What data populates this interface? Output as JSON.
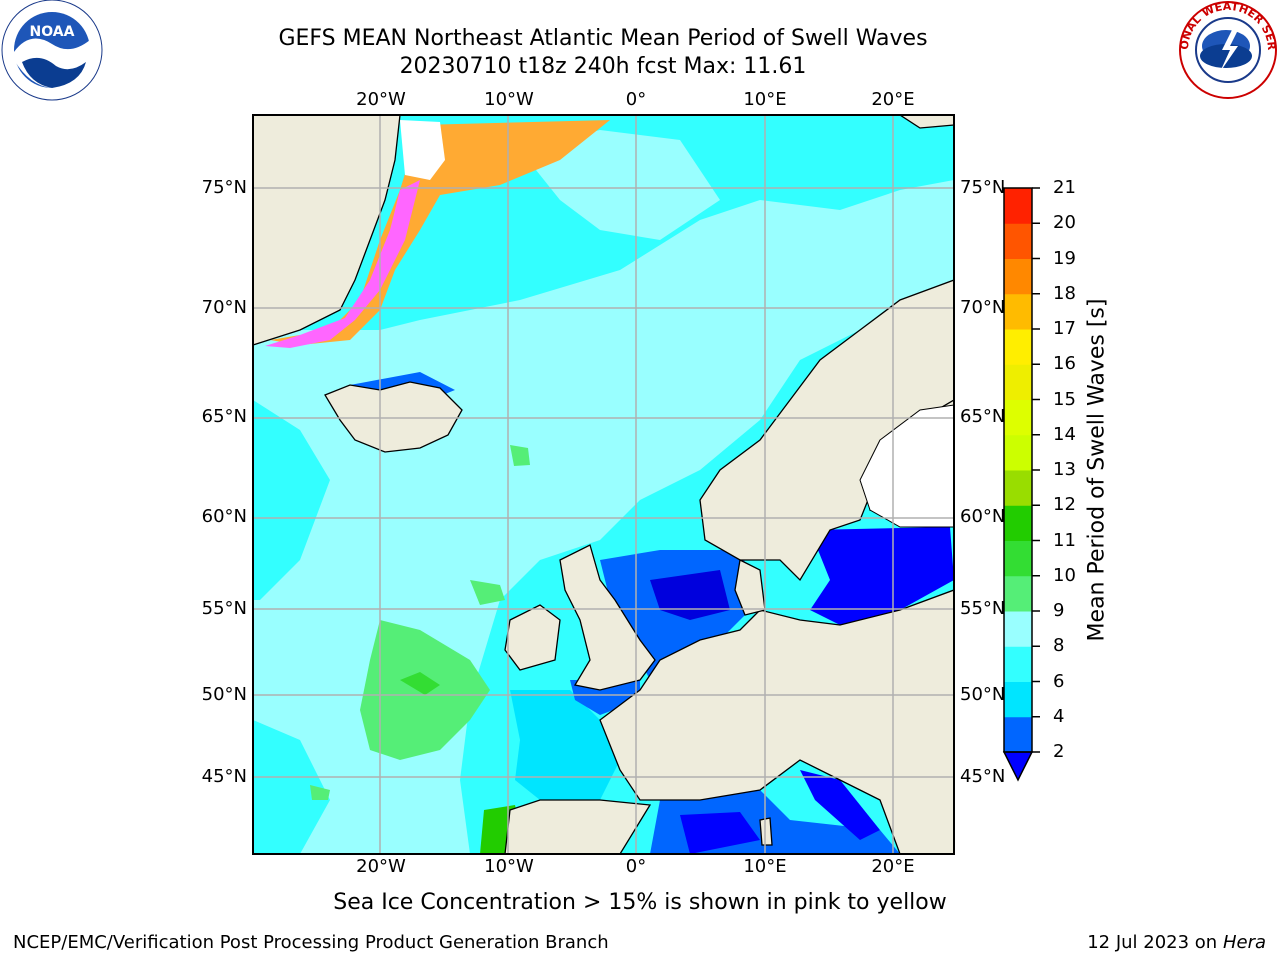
{
  "header": {
    "title_line1": "GEFS MEAN Northeast Atlantic Mean Period of Swell Waves",
    "title_line2": "20230710 t18z 240h fcst   Max: 11.61"
  },
  "logos": {
    "noaa": "NOAA",
    "nws": "NATIONAL WEATHER SERVICE"
  },
  "map": {
    "lon_labels": [
      "20°W",
      "10°W",
      "0°",
      "10°E",
      "20°E"
    ],
    "lat_labels": [
      "75°N",
      "70°N",
      "65°N",
      "60°N",
      "55°N",
      "50°N",
      "45°N"
    ],
    "land_color": "#eeecdc",
    "ocean_base_color": "#33ffff"
  },
  "colorbar": {
    "title": "Mean Period of Swell Waves [s]",
    "ticks": [
      "2",
      "4",
      "6",
      "8",
      "9",
      "10",
      "11",
      "12",
      "13",
      "14",
      "15",
      "16",
      "17",
      "18",
      "19",
      "20",
      "21"
    ],
    "colors": [
      "#0066ff",
      "#00e5ff",
      "#33ffff",
      "#99ffff",
      "#55ee77",
      "#33dd33",
      "#22cc00",
      "#99dd00",
      "#ccff00",
      "#ddff00",
      "#eeee00",
      "#ffee00",
      "#ffbb00",
      "#ff8800",
      "#ff5500",
      "#ff2200",
      "#ff0000"
    ],
    "under_color": "#0000ff"
  },
  "notes": {
    "ice_note": "Sea Ice Concentration > 15% is shown in pink to yellow",
    "footer_left": "NCEP/EMC/Verification Post Processing Product Generation Branch",
    "footer_date": "12 Jul 2023 on ",
    "footer_machine": "Hera"
  }
}
